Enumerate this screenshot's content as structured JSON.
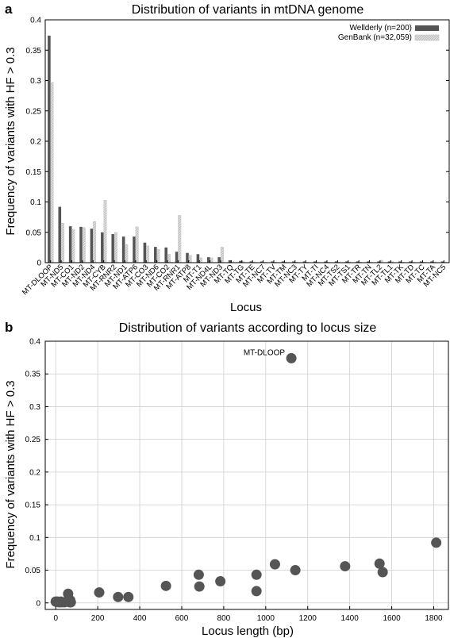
{
  "chart_data": [
    {
      "type": "bar",
      "panel": "a",
      "title": "Distribution of variants in mtDNA genome",
      "xlabel": "Locus",
      "ylabel": "Frequency of variants with HF > 0.3",
      "ylim": [
        0,
        0.4
      ],
      "yticks": [
        0,
        0.05,
        0.1,
        0.15,
        0.2,
        0.25,
        0.3,
        0.35,
        0.4
      ],
      "legend_position": "top-right",
      "colors": {
        "Wellderly": "#555555",
        "GenBank": "#dedede"
      },
      "categories": [
        "MT-DLOOP",
        "MT-ND5",
        "MT-CO1",
        "MT-ND2",
        "MT-ND4",
        "MT-CYB",
        "MT-RNR2",
        "MT-ND1",
        "MT-ATP6",
        "MT-CO3",
        "MT-ND6",
        "MT-CO2",
        "MT-RNR1",
        "MT-ATP8",
        "MT-T1",
        "MT-ND4L",
        "MT-ND3",
        "MT-TQ",
        "MT-TG",
        "MT-TE",
        "MT-NC7",
        "MT-TV",
        "MT-TM",
        "MT-NC3",
        "MT-TY",
        "MT-TI",
        "MT-NC4",
        "MT-TS2",
        "MT-TS1",
        "MT-TR",
        "MT-TN",
        "MT-TL2",
        "MT-TL1",
        "MT-TK",
        "MT-TD",
        "MT-TC",
        "MT-TA",
        "MT-NC5"
      ],
      "series": [
        {
          "name": "Wellderly (n=200)",
          "values": [
            0.374,
            0.092,
            0.06,
            0.059,
            0.056,
            0.05,
            0.047,
            0.043,
            0.043,
            0.033,
            0.026,
            0.025,
            0.018,
            0.016,
            0.014,
            0.009,
            0.009,
            0.004,
            0.003,
            0.002,
            0.002,
            0.002,
            0.002,
            0.002,
            0.002,
            0.002,
            0.002,
            0.002,
            0.002,
            0.002,
            0.002,
            0.002,
            0.002,
            0.002,
            0.002,
            0.002,
            0.002,
            0.002
          ]
        },
        {
          "name": "GenBank (n=32,059)",
          "values": [
            0.297,
            0.065,
            0.055,
            0.058,
            0.068,
            0.103,
            0.05,
            0.03,
            0.059,
            0.028,
            0.022,
            0.014,
            0.078,
            0.012,
            0.008,
            0.008,
            0.026,
            0.002,
            0.002,
            0.001,
            0.001,
            0.001,
            0.001,
            0.001,
            0.001,
            0.001,
            0.001,
            0.001,
            0.001,
            0.001,
            0.001,
            0.004,
            0.002,
            0.001,
            0.001,
            0.001,
            0.001,
            0.001
          ]
        }
      ]
    },
    {
      "type": "scatter",
      "panel": "b",
      "title": "Distribution of variants according to locus size",
      "xlabel": "Locus length (bp)",
      "ylabel": "Frequency of variants with HF > 0.3",
      "xlim": [
        -50,
        1870
      ],
      "ylim": [
        -0.01,
        0.4
      ],
      "xticks": [
        0,
        200,
        400,
        600,
        800,
        1000,
        1200,
        1400,
        1600,
        1800
      ],
      "yticks": [
        0,
        0.05,
        0.1,
        0.15,
        0.2,
        0.25,
        0.3,
        0.35,
        0.4
      ],
      "grid": true,
      "color": "#555555",
      "annotation": {
        "label": "MT-DLOOP",
        "x": 1122,
        "y": 0.374
      },
      "points": [
        {
          "x": 1122,
          "y": 0.374
        },
        {
          "x": 1812,
          "y": 0.092
        },
        {
          "x": 1542,
          "y": 0.06
        },
        {
          "x": 1557,
          "y": 0.047
        },
        {
          "x": 1378,
          "y": 0.056
        },
        {
          "x": 1044,
          "y": 0.059
        },
        {
          "x": 1141,
          "y": 0.05
        },
        {
          "x": 956,
          "y": 0.043
        },
        {
          "x": 956,
          "y": 0.018
        },
        {
          "x": 681,
          "y": 0.043
        },
        {
          "x": 684,
          "y": 0.025
        },
        {
          "x": 784,
          "y": 0.033
        },
        {
          "x": 525,
          "y": 0.026
        },
        {
          "x": 207,
          "y": 0.016
        },
        {
          "x": 297,
          "y": 0.009
        },
        {
          "x": 346,
          "y": 0.009
        },
        {
          "x": 59,
          "y": 0.014
        },
        {
          "x": 69,
          "y": 0.004
        },
        {
          "x": 68,
          "y": 0.002
        },
        {
          "x": 70,
          "y": 0.001
        },
        {
          "x": 66,
          "y": 0.001
        },
        {
          "x": 72,
          "y": 0.001
        },
        {
          "x": 0,
          "y": 0.002
        },
        {
          "x": 8,
          "y": 0.002
        },
        {
          "x": 15,
          "y": 0.001
        },
        {
          "x": 20,
          "y": 0.001
        },
        {
          "x": 30,
          "y": 0.001
        },
        {
          "x": 42,
          "y": 0.001
        },
        {
          "x": 24,
          "y": 0.002
        }
      ]
    }
  ]
}
